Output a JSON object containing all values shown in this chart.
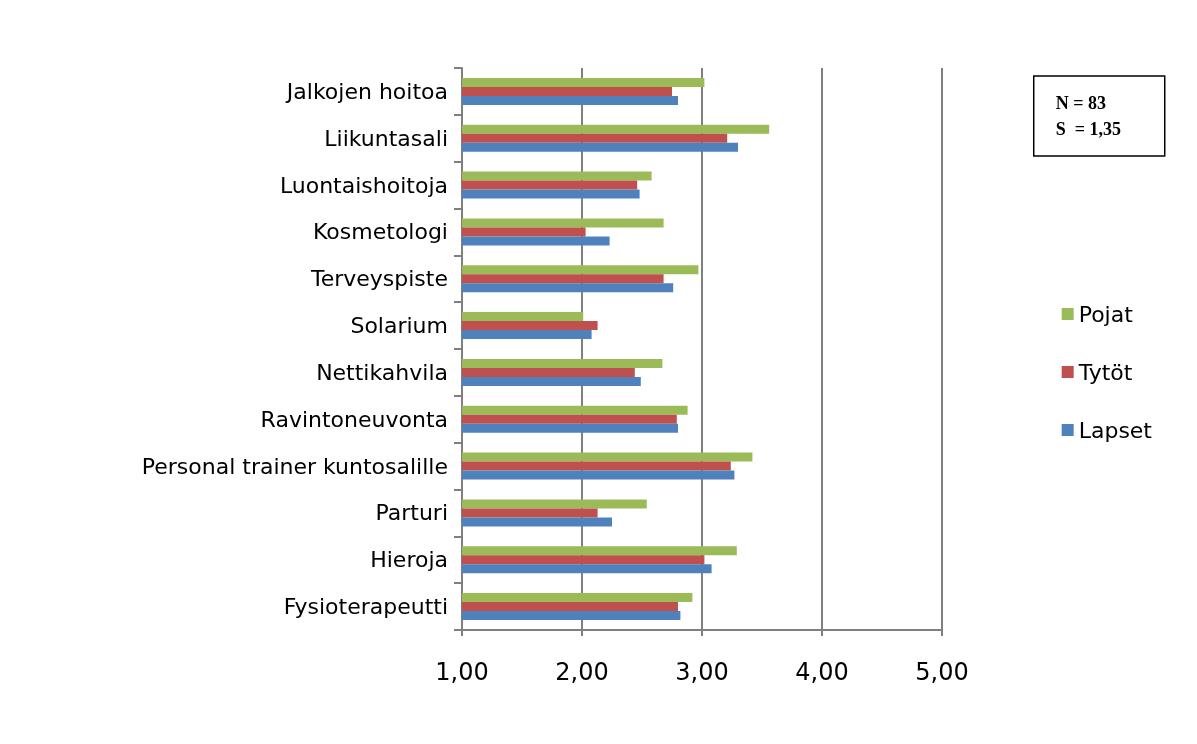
{
  "chart_data": {
    "type": "bar",
    "orientation": "horizontal",
    "categories": [
      "Jalkojen hoitoa",
      "Liikuntasali",
      "Luontaishoitoja",
      "Kosmetologi",
      "Terveyspiste",
      "Solarium",
      "Nettikahvila",
      "Ravintoneuvonta",
      "Personal trainer kuntosalille",
      "Parturi",
      "Hieroja",
      "Fysioterapeutti"
    ],
    "series": [
      {
        "name": "Pojat",
        "color": "#9bbb59",
        "values": [
          3.02,
          3.56,
          2.58,
          2.68,
          2.97,
          2.01,
          2.67,
          2.88,
          3.42,
          2.54,
          3.29,
          2.92
        ]
      },
      {
        "name": "Tytöt",
        "color": "#c0504d",
        "values": [
          2.75,
          3.21,
          2.46,
          2.03,
          2.68,
          2.13,
          2.44,
          2.79,
          3.24,
          2.13,
          3.02,
          2.8
        ]
      },
      {
        "name": "Lapset",
        "color": "#4f81bd",
        "values": [
          2.8,
          3.3,
          2.48,
          2.23,
          2.76,
          2.08,
          2.49,
          2.8,
          3.27,
          2.25,
          3.08,
          2.82
        ]
      }
    ],
    "xlim": [
      1,
      5
    ],
    "xticks": [
      {
        "value": 1,
        "label": "1,00"
      },
      {
        "value": 2,
        "label": "2,00"
      },
      {
        "value": 3,
        "label": "3,00"
      },
      {
        "value": 4,
        "label": "4,00"
      },
      {
        "value": 5,
        "label": "5,00"
      }
    ],
    "grid": "x",
    "legend": "right",
    "annotations": [
      "N = 83",
      "S  = 1,35"
    ]
  }
}
